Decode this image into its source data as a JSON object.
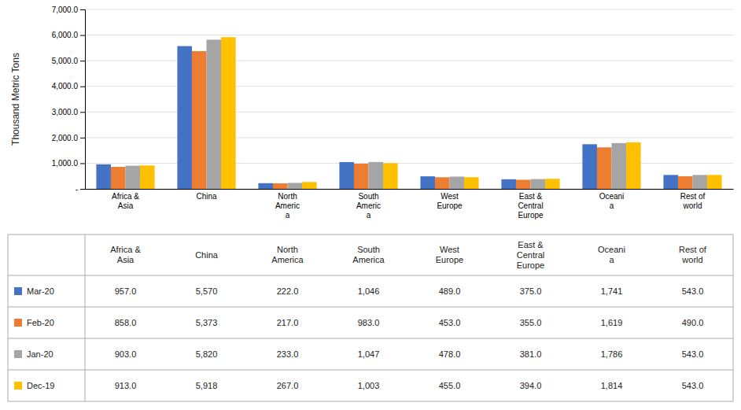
{
  "chart_data": {
    "type": "bar",
    "categories": [
      "Africa &\nAsia",
      "China",
      "North\nAmeric\na",
      "South\nAmeric\na",
      "West\nEurope",
      "East &\nCentral\nEurope",
      "Oceani\na",
      "Rest of\nworld"
    ],
    "series": [
      {
        "name": "Mar-20",
        "color": "#4472C4",
        "values": [
          957.0,
          5570,
          222.0,
          1046,
          489.0,
          375.0,
          1741,
          543.0
        ],
        "value_labels": [
          "957.0",
          "5,570",
          "222.0",
          "1,046",
          "489.0",
          "375.0",
          "1,741",
          "543.0"
        ]
      },
      {
        "name": "Feb-20",
        "color": "#ED7D31",
        "values": [
          858.0,
          5373,
          217.0,
          983.0,
          453.0,
          355.0,
          1619,
          490.0
        ],
        "value_labels": [
          "858.0",
          "5,373",
          "217.0",
          "983.0",
          "453.0",
          "355.0",
          "1,619",
          "490.0"
        ]
      },
      {
        "name": "Jan-20",
        "color": "#A5A5A5",
        "values": [
          903.0,
          5820,
          233.0,
          1047,
          478.0,
          381.0,
          1786,
          543.0
        ],
        "value_labels": [
          "903.0",
          "5,820",
          "233.0",
          "1,047",
          "478.0",
          "381.0",
          "1,786",
          "543.0"
        ]
      },
      {
        "name": "Dec-19",
        "color": "#FFC000",
        "values": [
          913.0,
          5918,
          267.0,
          1003,
          455.0,
          394.0,
          1814,
          543.0
        ],
        "value_labels": [
          "913.0",
          "5,918",
          "267.0",
          "1,003",
          "455.0",
          "394.0",
          "1,814",
          "543.0"
        ]
      }
    ],
    "ylabel": "Thousand Metric Tons",
    "ylim": [
      0,
      7000
    ],
    "yticks": [
      {
        "value": 0,
        "label": "-"
      },
      {
        "value": 1000,
        "label": "1,000.0"
      },
      {
        "value": 2000,
        "label": "2,000.0"
      },
      {
        "value": 3000,
        "label": "3,000.0"
      },
      {
        "value": 4000,
        "label": "4,000.0"
      },
      {
        "value": 5000,
        "label": "5,000.0"
      },
      {
        "value": 6000,
        "label": "6,000.0"
      },
      {
        "value": 7000,
        "label": "7,000.0"
      }
    ],
    "grid": true,
    "table_headers": [
      "Africa &\nAsia",
      "China",
      "North\nAmerica",
      "South\nAmerica",
      "West\nEurope",
      "East &\nCentral\nEurope",
      "Oceani\na",
      "Rest of\nworld"
    ]
  }
}
